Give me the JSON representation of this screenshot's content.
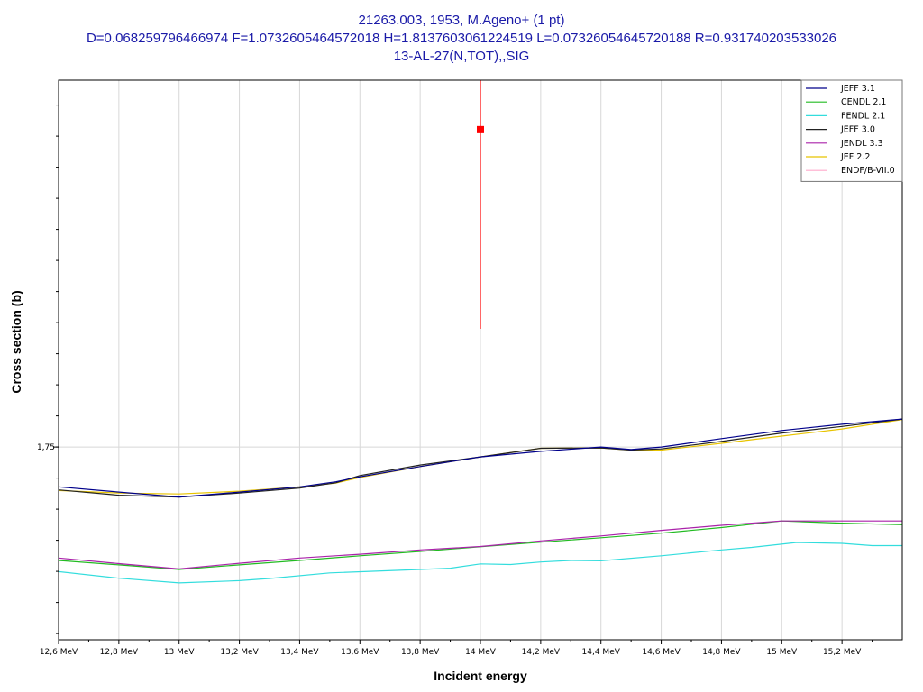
{
  "title": {
    "line1": "21263.003, 1953, M.Ageno+ (1 pt)",
    "line2": "D=0.068259796466974 F=1.0732605464572018 H=1.8137603061224519 L=0.07326054645720188 R=0.931740203533026",
    "line3": "13-AL-27(N,TOT),,SIG"
  },
  "colors": {
    "title": "#1a1aa8",
    "grid": "#d8d8d8",
    "measurement": "#ff0000"
  },
  "chart_data": {
    "type": "line",
    "xlabel": "Incident energy",
    "ylabel": "Cross section (b)",
    "xlim": [
      12.6,
      15.4
    ],
    "ylim": [
      1.688,
      1.868
    ],
    "x_ticks": [
      {
        "value": 12.6,
        "label": "12,6 MeV"
      },
      {
        "value": 12.8,
        "label": "12,8 MeV"
      },
      {
        "value": 13.0,
        "label": "13 MeV"
      },
      {
        "value": 13.2,
        "label": "13,2 MeV"
      },
      {
        "value": 13.4,
        "label": "13,4 MeV"
      },
      {
        "value": 13.6,
        "label": "13,6 MeV"
      },
      {
        "value": 13.8,
        "label": "13,8 MeV"
      },
      {
        "value": 14.0,
        "label": "14 MeV"
      },
      {
        "value": 14.2,
        "label": "14,2 MeV"
      },
      {
        "value": 14.4,
        "label": "14,4 MeV"
      },
      {
        "value": 14.6,
        "label": "14,6 MeV"
      },
      {
        "value": 14.8,
        "label": "14,8 MeV"
      },
      {
        "value": 15.0,
        "label": "15 MeV"
      },
      {
        "value": 15.2,
        "label": "15,2 MeV"
      }
    ],
    "y_ticks": [
      {
        "value": 1.75,
        "label": "1,75"
      }
    ],
    "grid": true,
    "legend_position": "top-right",
    "measurement": {
      "x": 14.0,
      "y": 1.8521,
      "y_err_low": 1.788,
      "y_err_high": 1.868
    },
    "series": [
      {
        "name": "JEFF 3.1",
        "color": "#00008b",
        "x": [
          12.6,
          12.8,
          13.0,
          13.2,
          13.4,
          13.52,
          13.6,
          13.8,
          14.0,
          14.2,
          14.4,
          14.5,
          14.6,
          14.8,
          15.0,
          15.2,
          15.4
        ],
        "y": [
          1.7372,
          1.7355,
          1.7339,
          1.7355,
          1.7372,
          1.7388,
          1.7404,
          1.7437,
          1.7468,
          1.7486,
          1.75,
          1.7492,
          1.75,
          1.7527,
          1.7553,
          1.7573,
          1.759
        ]
      },
      {
        "name": "CENDL 2.1",
        "color": "#22bb22",
        "x": [
          12.6,
          12.8,
          13.0,
          13.2,
          13.4,
          13.6,
          13.8,
          14.0,
          14.2,
          14.4,
          14.6,
          14.8,
          15.0,
          15.2,
          15.4
        ],
        "y": [
          1.7135,
          1.7121,
          1.7106,
          1.7121,
          1.7135,
          1.715,
          1.7164,
          1.7179,
          1.7194,
          1.7208,
          1.7223,
          1.7241,
          1.7262,
          1.7255,
          1.725
        ]
      },
      {
        "name": "FENDL 2.1",
        "color": "#33dddd",
        "x": [
          12.6,
          12.8,
          13.0,
          13.2,
          13.3,
          13.5,
          13.8,
          13.9,
          14.0,
          14.1,
          14.2,
          14.3,
          14.4,
          14.6,
          14.8,
          14.9,
          15.05,
          15.2,
          15.3,
          15.4
        ],
        "y": [
          1.7099,
          1.7078,
          1.7063,
          1.707,
          1.7077,
          1.7095,
          1.7106,
          1.711,
          1.7124,
          1.7122,
          1.713,
          1.7135,
          1.7134,
          1.715,
          1.7169,
          1.7177,
          1.7193,
          1.719,
          1.7183,
          1.7183
        ]
      },
      {
        "name": "JEFF 3.0",
        "color": "#222222",
        "x": [
          12.6,
          12.8,
          13.0,
          13.2,
          13.4,
          13.52,
          13.6,
          13.8,
          14.0,
          14.2,
          14.4,
          14.5,
          14.6,
          14.8,
          15.0,
          15.2,
          15.4
        ],
        "y": [
          1.7362,
          1.7345,
          1.7339,
          1.7352,
          1.7368,
          1.7385,
          1.7408,
          1.7442,
          1.7468,
          1.7496,
          1.7497,
          1.749,
          1.7494,
          1.7518,
          1.7545,
          1.7566,
          1.759
        ]
      },
      {
        "name": "JENDL 3.3",
        "color": "#aa22aa",
        "x": [
          12.6,
          12.8,
          13.0,
          13.2,
          13.4,
          13.6,
          13.8,
          14.0,
          14.2,
          14.4,
          14.6,
          14.8,
          15.0,
          15.2,
          15.4
        ],
        "y": [
          1.7143,
          1.7125,
          1.7108,
          1.7126,
          1.7143,
          1.7155,
          1.7169,
          1.718,
          1.7198,
          1.7214,
          1.7232,
          1.7248,
          1.7262,
          1.7262,
          1.7262
        ]
      },
      {
        "name": "JEF 2.2",
        "color": "#e8c400",
        "x": [
          12.6,
          12.8,
          13.0,
          13.2,
          13.4,
          13.52,
          13.6,
          13.8,
          14.0,
          14.2,
          14.4,
          14.5,
          14.6,
          14.8,
          15.0,
          15.2,
          15.4
        ],
        "y": [
          1.736,
          1.7352,
          1.7349,
          1.7358,
          1.7372,
          1.7384,
          1.7402,
          1.7437,
          1.7468,
          1.7496,
          1.7497,
          1.749,
          1.749,
          1.7512,
          1.7535,
          1.7558,
          1.7588
        ]
      },
      {
        "name": "ENDF/B-VII.0",
        "color": "#ffaacc",
        "x": [],
        "y": []
      }
    ]
  }
}
